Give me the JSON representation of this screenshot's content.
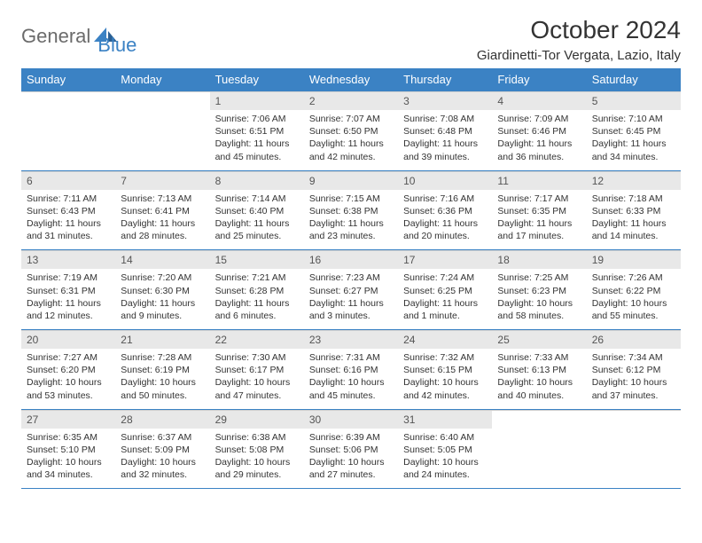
{
  "brand": {
    "part1": "General",
    "part2": "Blue"
  },
  "title": "October 2024",
  "location": "Giardinetti-Tor Vergata, Lazio, Italy",
  "colors": {
    "accent": "#3b82c4",
    "dayHeaderBg": "#e8e8e8",
    "text": "#333"
  },
  "daysOfWeek": [
    "Sunday",
    "Monday",
    "Tuesday",
    "Wednesday",
    "Thursday",
    "Friday",
    "Saturday"
  ],
  "weeks": [
    [
      null,
      null,
      {
        "n": "1",
        "sr": "Sunrise: 7:06 AM",
        "ss": "Sunset: 6:51 PM",
        "dl": "Daylight: 11 hours and 45 minutes."
      },
      {
        "n": "2",
        "sr": "Sunrise: 7:07 AM",
        "ss": "Sunset: 6:50 PM",
        "dl": "Daylight: 11 hours and 42 minutes."
      },
      {
        "n": "3",
        "sr": "Sunrise: 7:08 AM",
        "ss": "Sunset: 6:48 PM",
        "dl": "Daylight: 11 hours and 39 minutes."
      },
      {
        "n": "4",
        "sr": "Sunrise: 7:09 AM",
        "ss": "Sunset: 6:46 PM",
        "dl": "Daylight: 11 hours and 36 minutes."
      },
      {
        "n": "5",
        "sr": "Sunrise: 7:10 AM",
        "ss": "Sunset: 6:45 PM",
        "dl": "Daylight: 11 hours and 34 minutes."
      }
    ],
    [
      {
        "n": "6",
        "sr": "Sunrise: 7:11 AM",
        "ss": "Sunset: 6:43 PM",
        "dl": "Daylight: 11 hours and 31 minutes."
      },
      {
        "n": "7",
        "sr": "Sunrise: 7:13 AM",
        "ss": "Sunset: 6:41 PM",
        "dl": "Daylight: 11 hours and 28 minutes."
      },
      {
        "n": "8",
        "sr": "Sunrise: 7:14 AM",
        "ss": "Sunset: 6:40 PM",
        "dl": "Daylight: 11 hours and 25 minutes."
      },
      {
        "n": "9",
        "sr": "Sunrise: 7:15 AM",
        "ss": "Sunset: 6:38 PM",
        "dl": "Daylight: 11 hours and 23 minutes."
      },
      {
        "n": "10",
        "sr": "Sunrise: 7:16 AM",
        "ss": "Sunset: 6:36 PM",
        "dl": "Daylight: 11 hours and 20 minutes."
      },
      {
        "n": "11",
        "sr": "Sunrise: 7:17 AM",
        "ss": "Sunset: 6:35 PM",
        "dl": "Daylight: 11 hours and 17 minutes."
      },
      {
        "n": "12",
        "sr": "Sunrise: 7:18 AM",
        "ss": "Sunset: 6:33 PM",
        "dl": "Daylight: 11 hours and 14 minutes."
      }
    ],
    [
      {
        "n": "13",
        "sr": "Sunrise: 7:19 AM",
        "ss": "Sunset: 6:31 PM",
        "dl": "Daylight: 11 hours and 12 minutes."
      },
      {
        "n": "14",
        "sr": "Sunrise: 7:20 AM",
        "ss": "Sunset: 6:30 PM",
        "dl": "Daylight: 11 hours and 9 minutes."
      },
      {
        "n": "15",
        "sr": "Sunrise: 7:21 AM",
        "ss": "Sunset: 6:28 PM",
        "dl": "Daylight: 11 hours and 6 minutes."
      },
      {
        "n": "16",
        "sr": "Sunrise: 7:23 AM",
        "ss": "Sunset: 6:27 PM",
        "dl": "Daylight: 11 hours and 3 minutes."
      },
      {
        "n": "17",
        "sr": "Sunrise: 7:24 AM",
        "ss": "Sunset: 6:25 PM",
        "dl": "Daylight: 11 hours and 1 minute."
      },
      {
        "n": "18",
        "sr": "Sunrise: 7:25 AM",
        "ss": "Sunset: 6:23 PM",
        "dl": "Daylight: 10 hours and 58 minutes."
      },
      {
        "n": "19",
        "sr": "Sunrise: 7:26 AM",
        "ss": "Sunset: 6:22 PM",
        "dl": "Daylight: 10 hours and 55 minutes."
      }
    ],
    [
      {
        "n": "20",
        "sr": "Sunrise: 7:27 AM",
        "ss": "Sunset: 6:20 PM",
        "dl": "Daylight: 10 hours and 53 minutes."
      },
      {
        "n": "21",
        "sr": "Sunrise: 7:28 AM",
        "ss": "Sunset: 6:19 PM",
        "dl": "Daylight: 10 hours and 50 minutes."
      },
      {
        "n": "22",
        "sr": "Sunrise: 7:30 AM",
        "ss": "Sunset: 6:17 PM",
        "dl": "Daylight: 10 hours and 47 minutes."
      },
      {
        "n": "23",
        "sr": "Sunrise: 7:31 AM",
        "ss": "Sunset: 6:16 PM",
        "dl": "Daylight: 10 hours and 45 minutes."
      },
      {
        "n": "24",
        "sr": "Sunrise: 7:32 AM",
        "ss": "Sunset: 6:15 PM",
        "dl": "Daylight: 10 hours and 42 minutes."
      },
      {
        "n": "25",
        "sr": "Sunrise: 7:33 AM",
        "ss": "Sunset: 6:13 PM",
        "dl": "Daylight: 10 hours and 40 minutes."
      },
      {
        "n": "26",
        "sr": "Sunrise: 7:34 AM",
        "ss": "Sunset: 6:12 PM",
        "dl": "Daylight: 10 hours and 37 minutes."
      }
    ],
    [
      {
        "n": "27",
        "sr": "Sunrise: 6:35 AM",
        "ss": "Sunset: 5:10 PM",
        "dl": "Daylight: 10 hours and 34 minutes."
      },
      {
        "n": "28",
        "sr": "Sunrise: 6:37 AM",
        "ss": "Sunset: 5:09 PM",
        "dl": "Daylight: 10 hours and 32 minutes."
      },
      {
        "n": "29",
        "sr": "Sunrise: 6:38 AM",
        "ss": "Sunset: 5:08 PM",
        "dl": "Daylight: 10 hours and 29 minutes."
      },
      {
        "n": "30",
        "sr": "Sunrise: 6:39 AM",
        "ss": "Sunset: 5:06 PM",
        "dl": "Daylight: 10 hours and 27 minutes."
      },
      {
        "n": "31",
        "sr": "Sunrise: 6:40 AM",
        "ss": "Sunset: 5:05 PM",
        "dl": "Daylight: 10 hours and 24 minutes."
      },
      null,
      null
    ]
  ]
}
